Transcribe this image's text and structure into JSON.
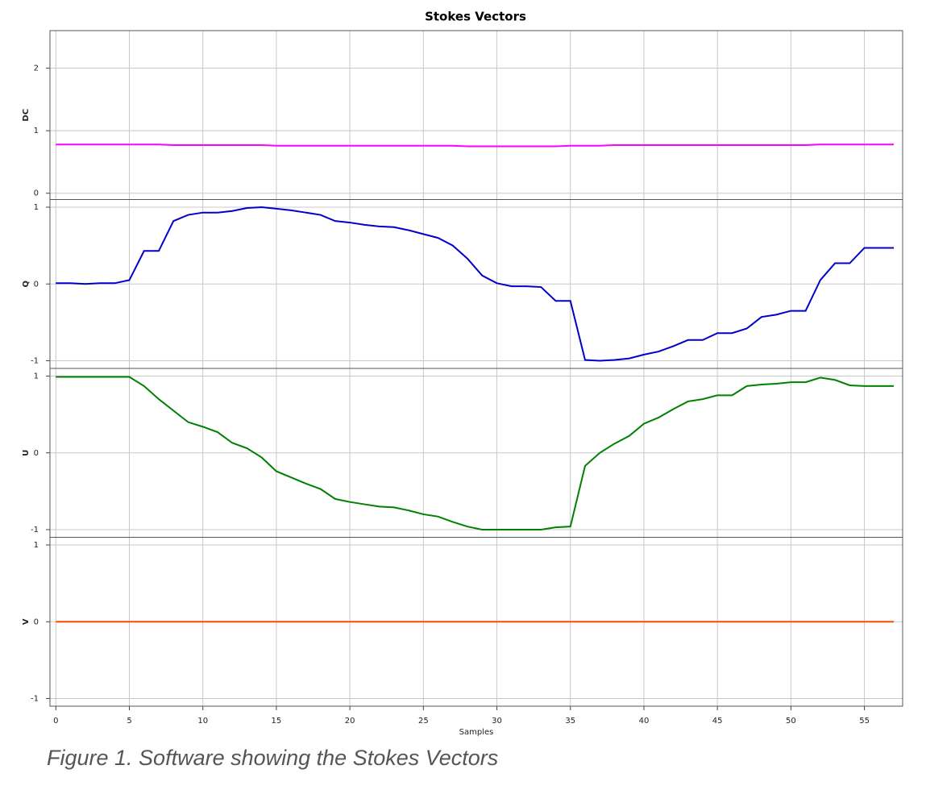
{
  "chart_data": [
    {
      "type": "line",
      "title": "Stokes Vectors",
      "ylabel": "DC",
      "color": "#ff00ff",
      "x": [
        0,
        1,
        2,
        3,
        4,
        5,
        6,
        7,
        8,
        9,
        10,
        11,
        12,
        13,
        14,
        15,
        16,
        17,
        18,
        19,
        20,
        21,
        22,
        23,
        24,
        25,
        26,
        27,
        28,
        29,
        30,
        31,
        32,
        33,
        34,
        35,
        36,
        37,
        38,
        39,
        40,
        41,
        42,
        43,
        44,
        45,
        46,
        47,
        48,
        49,
        50,
        51,
        52,
        53,
        54,
        55,
        56,
        57
      ],
      "values": [
        0.78,
        0.78,
        0.78,
        0.78,
        0.78,
        0.78,
        0.78,
        0.78,
        0.77,
        0.77,
        0.77,
        0.77,
        0.77,
        0.77,
        0.77,
        0.76,
        0.76,
        0.76,
        0.76,
        0.76,
        0.76,
        0.76,
        0.76,
        0.76,
        0.76,
        0.76,
        0.76,
        0.76,
        0.75,
        0.75,
        0.75,
        0.75,
        0.75,
        0.75,
        0.75,
        0.76,
        0.76,
        0.76,
        0.77,
        0.77,
        0.77,
        0.77,
        0.77,
        0.77,
        0.77,
        0.77,
        0.77,
        0.77,
        0.77,
        0.77,
        0.77,
        0.77,
        0.78,
        0.78,
        0.78,
        0.78,
        0.78,
        0.78
      ],
      "xlim": [
        -0.4,
        57.6
      ],
      "ylim": [
        -0.1,
        2.6
      ],
      "yticks": [
        0,
        1,
        2
      ],
      "grid": true
    },
    {
      "type": "line",
      "ylabel": "Q",
      "color": "#0000cc",
      "x": [
        0,
        1,
        2,
        3,
        4,
        5,
        6,
        7,
        8,
        9,
        10,
        11,
        12,
        13,
        14,
        15,
        16,
        17,
        18,
        19,
        20,
        21,
        22,
        23,
        24,
        25,
        26,
        27,
        28,
        29,
        30,
        31,
        32,
        33,
        34,
        35,
        36,
        37,
        38,
        39,
        40,
        41,
        42,
        43,
        44,
        45,
        46,
        47,
        48,
        49,
        50,
        51,
        52,
        53,
        54,
        55,
        56,
        57
      ],
      "values": [
        0.01,
        0.01,
        0.0,
        0.01,
        0.01,
        0.05,
        0.43,
        0.43,
        0.82,
        0.9,
        0.93,
        0.93,
        0.95,
        0.99,
        1.0,
        0.98,
        0.96,
        0.93,
        0.9,
        0.82,
        0.8,
        0.77,
        0.75,
        0.74,
        0.7,
        0.65,
        0.6,
        0.5,
        0.33,
        0.11,
        0.01,
        -0.03,
        -0.03,
        -0.04,
        -0.22,
        -0.22,
        -0.99,
        -1.0,
        -0.99,
        -0.97,
        -0.92,
        -0.88,
        -0.81,
        -0.73,
        -0.73,
        -0.64,
        -0.64,
        -0.58,
        -0.43,
        -0.4,
        -0.35,
        -0.35,
        0.05,
        0.27,
        0.27,
        0.47,
        0.47,
        0.47
      ],
      "xlim": [
        -0.4,
        57.6
      ],
      "ylim": [
        -1.1,
        1.1
      ],
      "yticks": [
        -1,
        0,
        1
      ],
      "grid": true
    },
    {
      "type": "line",
      "ylabel": "U",
      "color": "#008000",
      "x": [
        0,
        1,
        2,
        3,
        4,
        5,
        6,
        7,
        8,
        9,
        10,
        11,
        12,
        13,
        14,
        15,
        16,
        17,
        18,
        19,
        20,
        21,
        22,
        23,
        24,
        25,
        26,
        27,
        28,
        29,
        30,
        31,
        32,
        33,
        34,
        35,
        36,
        37,
        38,
        39,
        40,
        41,
        42,
        43,
        44,
        45,
        46,
        47,
        48,
        49,
        50,
        51,
        52,
        53,
        54,
        55,
        56,
        57
      ],
      "values": [
        0.99,
        0.99,
        0.99,
        0.99,
        0.99,
        0.99,
        0.87,
        0.7,
        0.55,
        0.4,
        0.34,
        0.27,
        0.13,
        0.06,
        -0.06,
        -0.24,
        -0.32,
        -0.4,
        -0.47,
        -0.6,
        -0.64,
        -0.67,
        -0.7,
        -0.71,
        -0.75,
        -0.8,
        -0.83,
        -0.9,
        -0.96,
        -1.0,
        -1.0,
        -1.0,
        -1.0,
        -1.0,
        -0.97,
        -0.96,
        -0.17,
        0.0,
        0.12,
        0.22,
        0.38,
        0.46,
        0.57,
        0.67,
        0.7,
        0.75,
        0.75,
        0.87,
        0.89,
        0.9,
        0.92,
        0.92,
        0.98,
        0.95,
        0.88,
        0.87,
        0.87,
        0.87
      ],
      "xlim": [
        -0.4,
        57.6
      ],
      "ylim": [
        -1.1,
        1.1
      ],
      "yticks": [
        -1,
        0,
        1
      ],
      "grid": true
    },
    {
      "type": "line",
      "ylabel": "V",
      "xlabel": "Samples",
      "color": "#ff4500",
      "x": [
        0,
        1,
        2,
        3,
        4,
        5,
        6,
        7,
        8,
        9,
        10,
        11,
        12,
        13,
        14,
        15,
        16,
        17,
        18,
        19,
        20,
        21,
        22,
        23,
        24,
        25,
        26,
        27,
        28,
        29,
        30,
        31,
        32,
        33,
        34,
        35,
        36,
        37,
        38,
        39,
        40,
        41,
        42,
        43,
        44,
        45,
        46,
        47,
        48,
        49,
        50,
        51,
        52,
        53,
        54,
        55,
        56,
        57
      ],
      "values": [
        0,
        0,
        0,
        0,
        0,
        0,
        0,
        0,
        0,
        0,
        0,
        0,
        0,
        0,
        0,
        0,
        0,
        0,
        0,
        0,
        0,
        0,
        0,
        0,
        0,
        0,
        0,
        0,
        0,
        0,
        0,
        0,
        0,
        0,
        0,
        0,
        0,
        0,
        0,
        0,
        0,
        0,
        0,
        0,
        0,
        0,
        0,
        0,
        0,
        0,
        0,
        0,
        0,
        0,
        0,
        0,
        0,
        0
      ],
      "xlim": [
        -0.4,
        57.6
      ],
      "ylim": [
        -1.1,
        1.1
      ],
      "yticks": [
        -1,
        0,
        1
      ],
      "xticks": [
        0,
        5,
        10,
        15,
        20,
        25,
        30,
        35,
        40,
        45,
        50,
        55
      ],
      "grid": true
    }
  ],
  "caption": "Figure 1. Software showing the Stokes Vectors"
}
